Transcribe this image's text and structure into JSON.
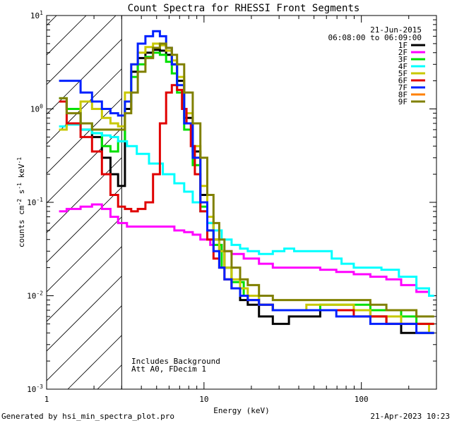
{
  "chart_data": {
    "type": "line",
    "title": "Count Spectra for RHESSI Front Segments",
    "xlabel": "Energy (keV)",
    "ylabel_base": "counts cm",
    "ylabel_exp1": "-2",
    "ylabel_mid": " s",
    "ylabel_exp2": "-1",
    "ylabel_end": " keV",
    "ylabel_exp3": "-1",
    "xscale": "log",
    "yscale": "log",
    "xlim": [
      1,
      300
    ],
    "ylim": [
      0.001,
      10
    ],
    "x_ticks": [
      {
        "value": 1,
        "label": "1"
      },
      {
        "value": 10,
        "label": "10"
      },
      {
        "value": 100,
        "label": "100"
      }
    ],
    "y_ticks": [
      {
        "value": 0.001,
        "base": "10",
        "exp": "-3"
      },
      {
        "value": 0.01,
        "base": "10",
        "exp": "-2"
      },
      {
        "value": 0.1,
        "base": "10",
        "exp": "-1"
      },
      {
        "value": 1,
        "base": "10",
        "exp": "0"
      },
      {
        "value": 10,
        "base": "10",
        "exp": "1"
      }
    ],
    "date": "21-Jun-2015",
    "time_range": "06:08:00 to 06:09:00",
    "threshold_keV": 3,
    "annotations": [
      "Includes Background",
      "Att A0, FDecim 1"
    ],
    "footer_left": "Generated by hsi_min_spectra_plot.pro",
    "footer_right": "21-Apr-2023 10:23",
    "series": [
      {
        "name": "1F",
        "color": "#000000",
        "x": [
          1.2,
          1.5,
          1.8,
          2.1,
          2.4,
          2.7,
          3.0,
          3.3,
          3.6,
          4.0,
          4.5,
          5.0,
          5.5,
          6.0,
          6.5,
          7.0,
          8.0,
          9.0,
          10,
          11,
          12,
          13,
          14,
          16,
          18,
          20,
          25,
          30,
          40,
          50,
          60,
          80,
          100,
          130,
          160,
          200,
          250,
          290
        ],
        "values": [
          1.2,
          1.0,
          0.6,
          0.5,
          0.3,
          0.2,
          0.15,
          1.0,
          2.5,
          3.5,
          4.0,
          4.3,
          4.2,
          3.8,
          3.0,
          2.0,
          0.8,
          0.35,
          0.12,
          0.06,
          0.04,
          0.03,
          0.02,
          0.012,
          0.009,
          0.008,
          0.006,
          0.005,
          0.006,
          0.006,
          0.007,
          0.007,
          0.007,
          0.006,
          0.005,
          0.004,
          0.004,
          0.004
        ]
      },
      {
        "name": "2F",
        "color": "#ff00ff",
        "x": [
          1.2,
          1.5,
          1.8,
          2.1,
          2.4,
          2.7,
          3.0,
          3.5,
          4.0,
          5.0,
          6.0,
          7.0,
          8.0,
          9.0,
          10,
          12,
          14,
          16,
          20,
          25,
          30,
          40,
          50,
          60,
          80,
          100,
          130,
          160,
          200,
          250,
          290
        ],
        "values": [
          0.08,
          0.085,
          0.09,
          0.095,
          0.085,
          0.07,
          0.06,
          0.055,
          0.055,
          0.055,
          0.055,
          0.05,
          0.048,
          0.045,
          0.04,
          0.035,
          0.03,
          0.028,
          0.025,
          0.022,
          0.02,
          0.02,
          0.02,
          0.019,
          0.018,
          0.017,
          0.016,
          0.015,
          0.013,
          0.011,
          0.01
        ]
      },
      {
        "name": "3F",
        "color": "#00e000",
        "x": [
          1.2,
          1.5,
          1.8,
          2.1,
          2.4,
          2.7,
          3.0,
          3.3,
          3.6,
          4.0,
          4.5,
          5.0,
          5.5,
          6.0,
          6.5,
          7.0,
          8.0,
          9.0,
          10,
          11,
          12,
          14,
          16,
          20,
          25,
          30,
          40,
          50,
          60,
          80,
          100,
          130,
          160,
          200,
          250,
          290
        ],
        "values": [
          1.3,
          1.0,
          0.7,
          0.55,
          0.4,
          0.35,
          0.45,
          1.2,
          2.2,
          3.0,
          3.6,
          4.0,
          3.8,
          3.2,
          2.4,
          1.5,
          0.6,
          0.25,
          0.09,
          0.05,
          0.035,
          0.02,
          0.014,
          0.01,
          0.008,
          0.007,
          0.007,
          0.007,
          0.008,
          0.008,
          0.008,
          0.007,
          0.007,
          0.006,
          0.005,
          0.005
        ]
      },
      {
        "name": "4F",
        "color": "#00ffff",
        "x": [
          1.2,
          1.5,
          1.8,
          2.1,
          2.4,
          2.7,
          3.0,
          3.5,
          4.0,
          5.0,
          6.0,
          7.0,
          8.0,
          9.0,
          10,
          11,
          12,
          14,
          16,
          18,
          20,
          25,
          30,
          35,
          40,
          50,
          60,
          70,
          80,
          100,
          120,
          150,
          200,
          250,
          290
        ],
        "values": [
          0.65,
          0.68,
          0.6,
          0.55,
          0.52,
          0.5,
          0.45,
          0.4,
          0.33,
          0.26,
          0.2,
          0.16,
          0.13,
          0.1,
          0.08,
          0.06,
          0.05,
          0.04,
          0.035,
          0.032,
          0.03,
          0.028,
          0.03,
          0.032,
          0.03,
          0.03,
          0.03,
          0.025,
          0.022,
          0.02,
          0.02,
          0.019,
          0.016,
          0.012,
          0.01
        ]
      },
      {
        "name": "5F",
        "color": "#c8c800",
        "x": [
          1.2,
          1.5,
          1.8,
          2.1,
          2.4,
          2.7,
          3.0,
          3.3,
          3.6,
          4.0,
          4.5,
          5.0,
          5.5,
          6.0,
          6.5,
          7.0,
          8.0,
          9.0,
          10,
          11,
          12,
          13,
          14,
          16,
          18,
          20,
          25,
          30,
          40,
          50,
          60,
          80,
          100,
          130,
          160,
          200,
          250,
          290
        ],
        "values": [
          0.6,
          0.7,
          1.2,
          1.0,
          0.8,
          0.7,
          0.65,
          1.5,
          3.0,
          4.0,
          4.6,
          5.0,
          4.8,
          4.2,
          3.3,
          2.2,
          0.9,
          0.4,
          0.15,
          0.07,
          0.04,
          0.03,
          0.02,
          0.015,
          0.012,
          0.01,
          0.008,
          0.007,
          0.007,
          0.008,
          0.008,
          0.008,
          0.007,
          0.006,
          0.006,
          0.005,
          0.005,
          0.004
        ]
      },
      {
        "name": "6F",
        "color": "#e00000",
        "x": [
          1.2,
          1.5,
          1.8,
          2.1,
          2.4,
          2.7,
          3.0,
          3.3,
          3.6,
          4.0,
          4.5,
          5.0,
          5.5,
          6.0,
          6.5,
          7.0,
          7.5,
          8.0,
          8.5,
          9.0,
          10,
          11,
          12,
          13,
          14,
          16,
          18,
          20,
          25,
          30,
          40,
          50,
          60,
          80,
          100,
          130,
          160,
          200,
          250,
          290
        ],
        "values": [
          1.2,
          0.7,
          0.5,
          0.35,
          0.2,
          0.12,
          0.09,
          0.085,
          0.08,
          0.085,
          0.1,
          0.2,
          0.7,
          1.5,
          1.8,
          1.6,
          1.0,
          0.7,
          0.4,
          0.2,
          0.08,
          0.04,
          0.025,
          0.02,
          0.015,
          0.012,
          0.01,
          0.009,
          0.008,
          0.007,
          0.007,
          0.007,
          0.007,
          0.007,
          0.006,
          0.006,
          0.005,
          0.005,
          0.005,
          0.005
        ]
      },
      {
        "name": "7F",
        "color": "#0020ff",
        "x": [
          1.2,
          1.5,
          1.8,
          2.1,
          2.4,
          2.7,
          3.0,
          3.3,
          3.6,
          4.0,
          4.5,
          5.0,
          5.5,
          6.0,
          6.5,
          7.0,
          8.0,
          9.0,
          10,
          11,
          12,
          13,
          14,
          16,
          18,
          20,
          25,
          30,
          40,
          50,
          60,
          80,
          100,
          130,
          160,
          200,
          250,
          290
        ],
        "values": [
          2.0,
          2.0,
          1.5,
          1.2,
          1.0,
          0.9,
          0.85,
          1.2,
          3.0,
          5.0,
          6.0,
          6.8,
          6.0,
          4.5,
          3.0,
          1.8,
          0.7,
          0.3,
          0.1,
          0.05,
          0.03,
          0.02,
          0.015,
          0.012,
          0.01,
          0.009,
          0.008,
          0.007,
          0.007,
          0.007,
          0.007,
          0.006,
          0.006,
          0.005,
          0.005,
          0.005,
          0.004,
          0.004
        ]
      },
      {
        "name": "8F",
        "color": "#ff8000",
        "x": [],
        "values": []
      },
      {
        "name": "9F",
        "color": "#808000",
        "x": [
          1.2,
          1.5,
          1.8,
          2.1,
          2.4,
          2.7,
          3.0,
          3.3,
          3.6,
          4.0,
          4.5,
          5.0,
          5.5,
          6.0,
          6.5,
          7.0,
          8.0,
          9.0,
          10,
          11,
          12,
          13,
          14,
          16,
          18,
          20,
          25,
          30,
          40,
          50,
          60,
          80,
          100,
          130,
          160,
          200,
          250,
          290
        ],
        "values": [
          1.3,
          0.9,
          0.7,
          0.6,
          0.6,
          0.6,
          0.6,
          0.9,
          1.5,
          2.5,
          3.5,
          4.5,
          5.0,
          4.5,
          3.8,
          3.0,
          1.5,
          0.7,
          0.3,
          0.12,
          0.06,
          0.04,
          0.03,
          0.02,
          0.015,
          0.013,
          0.01,
          0.009,
          0.009,
          0.009,
          0.009,
          0.009,
          0.009,
          0.008,
          0.007,
          0.007,
          0.006,
          0.006
        ]
      }
    ]
  }
}
